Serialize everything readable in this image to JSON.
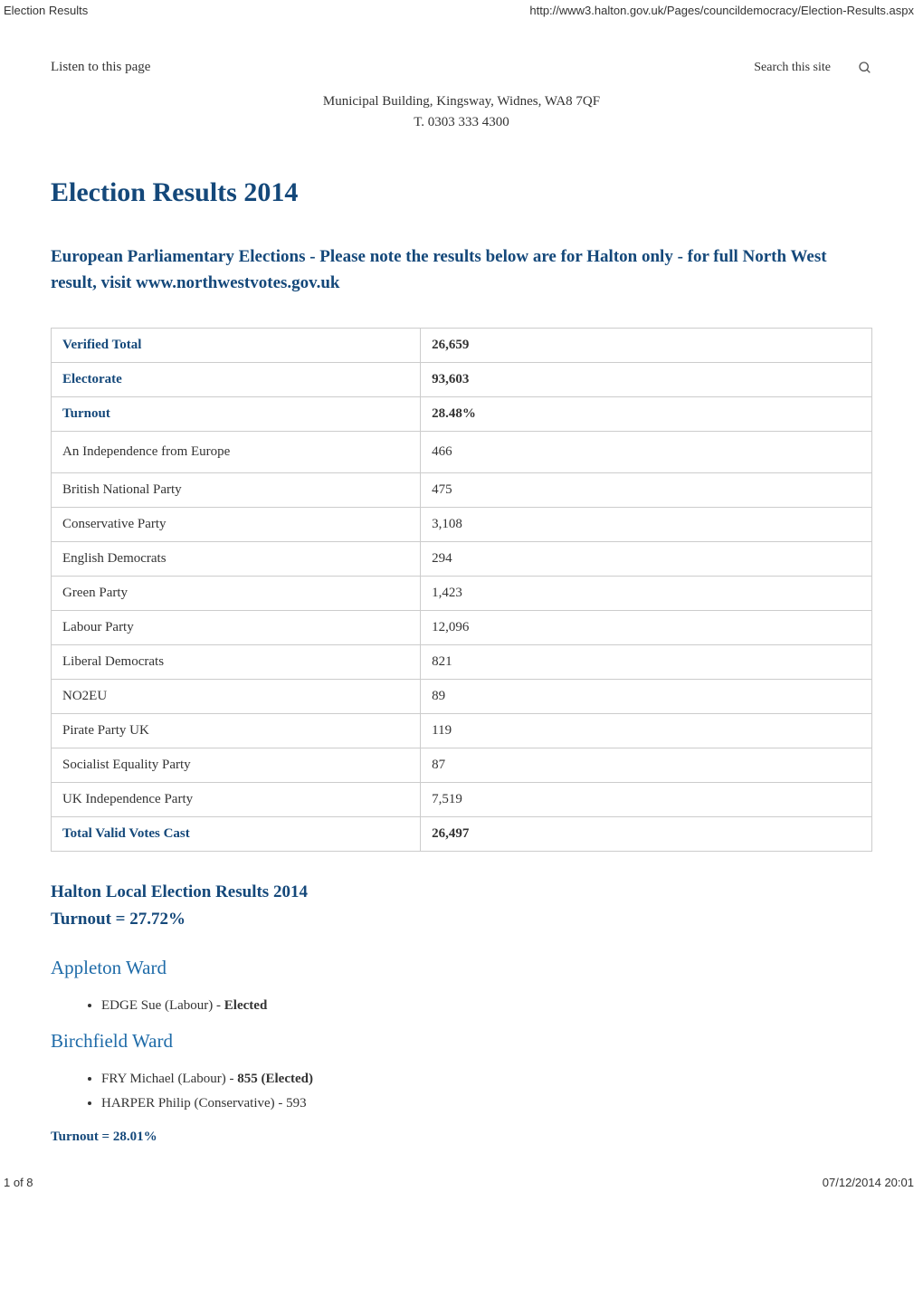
{
  "header": {
    "left_text": "Election Results",
    "right_text": "http://www3.halton.gov.uk/Pages/councildemocracy/Election-Results.aspx"
  },
  "listen_link": "Listen to this page",
  "search": {
    "placeholder": "Search this site"
  },
  "address": {
    "line1": "Municipal Building, Kingsway, Widnes, WA8 7QF",
    "line2": "T. 0303 333 4300"
  },
  "page_title": "Election Results 2014",
  "eu_section": {
    "heading": "European Parliamentary Elections - Please note the results below are for Halton only - for full North West result, visit www.northwestvotes.gov.uk",
    "rows": [
      {
        "label": "Verified Total",
        "value": "26,659",
        "label_bold": true,
        "value_bold": true,
        "tall": false
      },
      {
        "label": "Electorate",
        "value": "93,603",
        "label_bold": true,
        "value_bold": true,
        "tall": false
      },
      {
        "label": "Turnout",
        "value": "28.48%",
        "label_bold": true,
        "value_bold": true,
        "tall": false
      },
      {
        "label": "An Independence from Europe",
        "value": "466",
        "label_bold": false,
        "value_bold": false,
        "tall": true
      },
      {
        "label": "British National Party",
        "value": "475",
        "label_bold": false,
        "value_bold": false,
        "tall": false
      },
      {
        "label": "Conservative Party",
        "value": "3,108",
        "label_bold": false,
        "value_bold": false,
        "tall": false
      },
      {
        "label": "English Democrats",
        "value": "294",
        "label_bold": false,
        "value_bold": false,
        "tall": false
      },
      {
        "label": "Green Party",
        "value": "1,423",
        "label_bold": false,
        "value_bold": false,
        "tall": false
      },
      {
        "label": "Labour Party",
        "value": "12,096",
        "label_bold": false,
        "value_bold": false,
        "tall": false
      },
      {
        "label": "Liberal Democrats",
        "value": "821",
        "label_bold": false,
        "value_bold": false,
        "tall": false
      },
      {
        "label": "NO2EU",
        "value": "89",
        "label_bold": false,
        "value_bold": false,
        "tall": false
      },
      {
        "label": "Pirate Party UK",
        "value": "119",
        "label_bold": false,
        "value_bold": false,
        "tall": false
      },
      {
        "label": "Socialist Equality Party",
        "value": "87",
        "label_bold": false,
        "value_bold": false,
        "tall": false
      },
      {
        "label": "UK Independence Party",
        "value": "7,519",
        "label_bold": false,
        "value_bold": false,
        "tall": false
      },
      {
        "label": "Total Valid Votes Cast",
        "value": "26,497",
        "label_bold": true,
        "value_bold": true,
        "tall": false
      }
    ]
  },
  "local_section": {
    "heading_line1": "Halton Local Election Results 2014",
    "heading_line2": "Turnout = 27.72%",
    "wards": [
      {
        "name": "Appleton Ward",
        "candidates": [
          {
            "text_prefix": "EDGE Sue (Labour) - ",
            "text_bold": "Elected",
            "text_suffix": ""
          }
        ],
        "turnout": null
      },
      {
        "name": "Birchfield Ward",
        "candidates": [
          {
            "text_prefix": "FRY Michael (Labour) - ",
            "text_bold": "855 (Elected)",
            "text_suffix": ""
          },
          {
            "text_prefix": "HARPER Philip (Conservative) - 593",
            "text_bold": "",
            "text_suffix": ""
          }
        ],
        "turnout": "Turnout = 28.01%"
      }
    ]
  },
  "footer": {
    "left_text": "1 of 8",
    "right_text": "07/12/2014 20:01"
  },
  "colors": {
    "heading_blue": "#14487a",
    "link_blue": "#1e6ba8",
    "text": "#333333",
    "border": "#cccccc",
    "background": "#ffffff"
  }
}
